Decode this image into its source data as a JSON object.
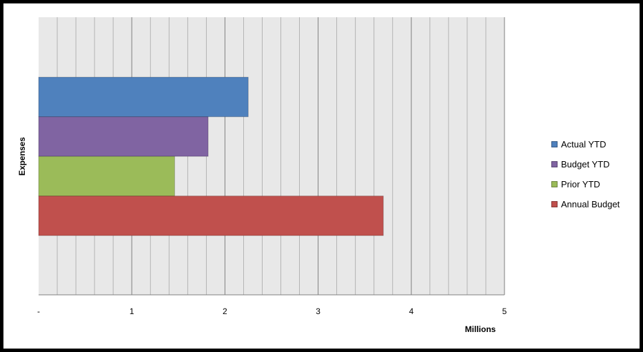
{
  "chart_data": {
    "type": "bar",
    "orientation": "horizontal",
    "categories": [
      "Expenses"
    ],
    "series": [
      {
        "name": "Actual YTD",
        "values": [
          2.25
        ],
        "color": "#4F81BD"
      },
      {
        "name": "Budget YTD",
        "values": [
          1.82
        ],
        "color": "#8064A2"
      },
      {
        "name": "Prior YTD",
        "values": [
          1.46
        ],
        "color": "#9BBB59"
      },
      {
        "name": "Annual Budget",
        "values": [
          3.7
        ],
        "color": "#C0504D"
      }
    ],
    "xlim": [
      0,
      5
    ],
    "x_ticks": [
      "-",
      "1",
      "2",
      "3",
      "4",
      "5"
    ],
    "xlabel": "Millions",
    "ylabel": "Expenses",
    "grid": true,
    "legend_position": "right",
    "plot_background": "#E8E8E8"
  }
}
